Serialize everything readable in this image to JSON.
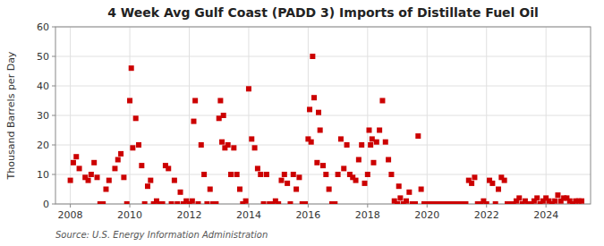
{
  "chart_data": {
    "type": "scatter",
    "title": "4 Week Avg Gulf Coast (PADD 3) Imports of Distillate Fuel Oil",
    "y_label": "Thousand Barrels per Day",
    "source": "Source: U.S. Energy Information Administration",
    "color": "#cc0000",
    "marker": "square",
    "grid": true,
    "xlim": [
      2007.5,
      2025.5
    ],
    "ylim": [
      0,
      60
    ],
    "xticks": [
      2008,
      2010,
      2012,
      2014,
      2016,
      2018,
      2020,
      2022,
      2024
    ],
    "yticks": [
      0,
      10,
      20,
      30,
      40,
      50,
      60
    ],
    "x": [
      2008.0,
      2008.1,
      2008.2,
      2008.3,
      2008.5,
      2008.6,
      2008.7,
      2008.8,
      2008.9,
      2009.0,
      2009.1,
      2009.2,
      2009.3,
      2009.5,
      2009.6,
      2009.7,
      2009.8,
      2009.9,
      2010.0,
      2010.05,
      2010.1,
      2010.2,
      2010.3,
      2010.4,
      2010.5,
      2010.6,
      2010.7,
      2010.8,
      2010.9,
      2011.0,
      2011.1,
      2011.2,
      2011.3,
      2011.4,
      2011.5,
      2011.6,
      2011.7,
      2011.8,
      2011.9,
      2012.0,
      2012.1,
      2012.15,
      2012.2,
      2012.3,
      2012.4,
      2012.5,
      2012.6,
      2012.7,
      2012.8,
      2012.9,
      2013.0,
      2013.05,
      2013.1,
      2013.15,
      2013.2,
      2013.3,
      2013.4,
      2013.5,
      2013.6,
      2013.7,
      2013.8,
      2013.9,
      2014.0,
      2014.1,
      2014.2,
      2014.3,
      2014.4,
      2014.5,
      2014.6,
      2014.7,
      2014.8,
      2014.9,
      2015.0,
      2015.1,
      2015.2,
      2015.3,
      2015.4,
      2015.5,
      2015.6,
      2015.7,
      2015.8,
      2015.9,
      2016.0,
      2016.05,
      2016.1,
      2016.15,
      2016.2,
      2016.3,
      2016.35,
      2016.4,
      2016.5,
      2016.6,
      2016.7,
      2016.8,
      2016.9,
      2017.0,
      2017.1,
      2017.2,
      2017.3,
      2017.4,
      2017.5,
      2017.6,
      2017.7,
      2017.8,
      2017.9,
      2018.0,
      2018.05,
      2018.1,
      2018.15,
      2018.2,
      2018.3,
      2018.4,
      2018.5,
      2018.6,
      2018.7,
      2018.8,
      2018.9,
      2019.0,
      2019.05,
      2019.1,
      2019.2,
      2019.3,
      2019.4,
      2019.5,
      2019.6,
      2019.7,
      2019.8,
      2019.9,
      2020.0,
      2020.1,
      2020.2,
      2020.3,
      2020.4,
      2020.5,
      2020.6,
      2020.7,
      2020.8,
      2020.9,
      2021.0,
      2021.1,
      2021.2,
      2021.3,
      2021.4,
      2021.5,
      2021.6,
      2021.7,
      2021.8,
      2021.9,
      2022.0,
      2022.1,
      2022.2,
      2022.3,
      2022.4,
      2022.5,
      2022.6,
      2022.7,
      2022.8,
      2022.9,
      2023.0,
      2023.1,
      2023.2,
      2023.3,
      2023.4,
      2023.5,
      2023.6,
      2023.7,
      2023.8,
      2023.9,
      2024.0,
      2024.1,
      2024.2,
      2024.3,
      2024.4,
      2024.5,
      2024.6,
      2024.7,
      2024.8,
      2024.9,
      2025.0,
      2025.1,
      2025.2
    ],
    "values": [
      8,
      14,
      16,
      12,
      9,
      8,
      10,
      14,
      9,
      0,
      0,
      5,
      8,
      12,
      15,
      17,
      9,
      0,
      35,
      46,
      19,
      29,
      20,
      13,
      0,
      6,
      8,
      0,
      1,
      0,
      0,
      13,
      12,
      0,
      8,
      0,
      4,
      0,
      1,
      0,
      1,
      28,
      35,
      0,
      20,
      10,
      0,
      5,
      0,
      0,
      29,
      35,
      21,
      30,
      19,
      20,
      10,
      19,
      10,
      5,
      0,
      1,
      39,
      22,
      19,
      12,
      10,
      0,
      10,
      0,
      0,
      1,
      0,
      8,
      10,
      7,
      0,
      10,
      5,
      9,
      0,
      0,
      22,
      32,
      21,
      50,
      36,
      14,
      31,
      25,
      13,
      10,
      5,
      0,
      0,
      10,
      22,
      12,
      20,
      10,
      9,
      8,
      15,
      20,
      7,
      10,
      25,
      20,
      22,
      14,
      21,
      25,
      35,
      21,
      15,
      10,
      1,
      0,
      6,
      2,
      0,
      1,
      4,
      0,
      0,
      23,
      5,
      0,
      0,
      0,
      0,
      0,
      0,
      0,
      0,
      0,
      0,
      0,
      0,
      0,
      0,
      0,
      8,
      7,
      9,
      0,
      0,
      1,
      0,
      8,
      7,
      0,
      5,
      9,
      8,
      0,
      0,
      0,
      1,
      2,
      0,
      1,
      0,
      0,
      1,
      2,
      0,
      1,
      2,
      1,
      0,
      1,
      3,
      1,
      2,
      2,
      1,
      0,
      1,
      1,
      1
    ]
  }
}
